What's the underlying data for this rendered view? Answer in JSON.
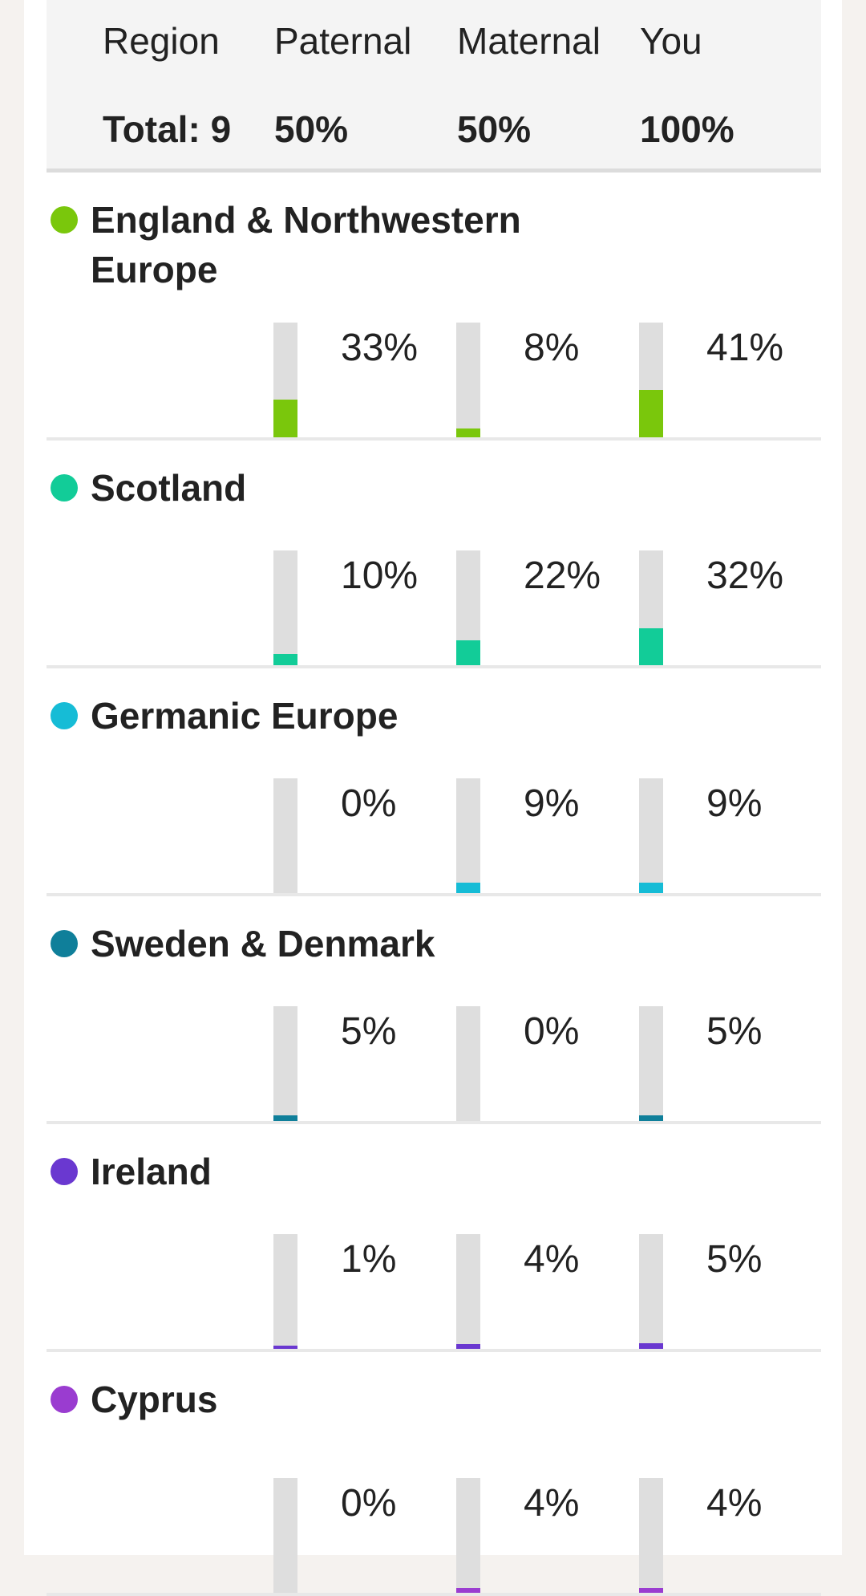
{
  "header": {
    "columns": [
      "Region",
      "Paternal",
      "Maternal",
      "You"
    ],
    "totals": [
      "Total: 9",
      "50%",
      "50%",
      "100%"
    ]
  },
  "regions": [
    {
      "name": "England & Northwestern Europe",
      "color": "#7ac70c",
      "paternal": {
        "label": "33%",
        "value": 33
      },
      "maternal": {
        "label": "8%",
        "value": 8
      },
      "you": {
        "label": "41%",
        "value": 41
      }
    },
    {
      "name": "Scotland",
      "color": "#12cc98",
      "paternal": {
        "label": "10%",
        "value": 10
      },
      "maternal": {
        "label": "22%",
        "value": 22
      },
      "you": {
        "label": "32%",
        "value": 32
      }
    },
    {
      "name": "Germanic Europe",
      "color": "#16bcd6",
      "paternal": {
        "label": "0%",
        "value": 0
      },
      "maternal": {
        "label": "9%",
        "value": 9
      },
      "you": {
        "label": "9%",
        "value": 9
      }
    },
    {
      "name": "Sweden & Denmark",
      "color": "#0f7f9a",
      "paternal": {
        "label": "5%",
        "value": 5
      },
      "maternal": {
        "label": "0%",
        "value": 0
      },
      "you": {
        "label": "5%",
        "value": 5
      }
    },
    {
      "name": "Ireland",
      "color": "#6a38d0",
      "paternal": {
        "label": "1%",
        "value": 1
      },
      "maternal": {
        "label": "4%",
        "value": 4
      },
      "you": {
        "label": "5%",
        "value": 5
      }
    },
    {
      "name": "Cyprus",
      "color": "#9a3cd0",
      "paternal": {
        "label": "0%",
        "value": 0
      },
      "maternal": {
        "label": "4%",
        "value": 4
      },
      "you": {
        "label": "4%",
        "value": 4
      }
    }
  ]
}
